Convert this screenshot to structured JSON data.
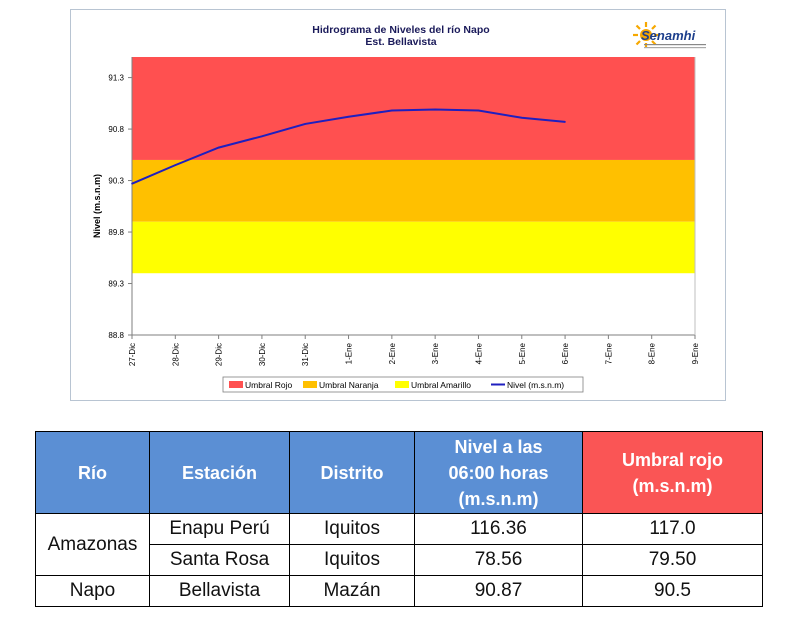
{
  "chart_data": {
    "type": "line",
    "title": "Hidrograma de Niveles del río Napo",
    "subtitle": "Est. Bellavista",
    "logo_text": "Senamhi",
    "ylabel": "Nivel (m.s.n.m)",
    "xlabel": "",
    "ylim": [
      88.8,
      91.5
    ],
    "y_ticks": [
      "88.8",
      "89.3",
      "89.8",
      "90.3",
      "90.8",
      "91.3"
    ],
    "x_ticks": [
      "27-Dic",
      "28-Dic",
      "29-Dic",
      "30-Dic",
      "31-Dic",
      "1-Ene",
      "2-Ene",
      "3-Ene",
      "4-Ene",
      "5-Ene",
      "6-Ene",
      "7-Ene",
      "8-Ene",
      "9-Ene"
    ],
    "bands": [
      {
        "name": "Umbral Rojo",
        "from": 90.5,
        "to": 91.5,
        "color": "#ff5050"
      },
      {
        "name": "Umbral Naranja",
        "from": 89.9,
        "to": 90.5,
        "color": "#ffc000"
      },
      {
        "name": "Umbral Amarillo",
        "from": 89.4,
        "to": 89.9,
        "color": "#ffff00"
      }
    ],
    "series": [
      {
        "name": "Nivel (m.s.n.m)",
        "color": "#1f1fbf",
        "x": [
          "27-Dic",
          "28-Dic",
          "29-Dic",
          "30-Dic",
          "31-Dic",
          "1-Ene",
          "2-Ene",
          "3-Ene",
          "4-Ene",
          "5-Ene",
          "6-Ene"
        ],
        "values": [
          90.27,
          90.45,
          90.62,
          90.73,
          90.85,
          90.92,
          90.98,
          90.99,
          90.98,
          90.91,
          90.87
        ]
      }
    ],
    "legend": [
      "Umbral Rojo",
      "Umbral Naranja",
      "Umbral Amarillo",
      "Nivel (m.s.n.m)"
    ],
    "legend_position": "bottom",
    "grid": false
  },
  "table": {
    "headers": [
      "Río",
      "Estación",
      "Distrito",
      "Nivel a las 06:00 horas (m.s.n.m)",
      "Umbral rojo (m.s.n.m)"
    ],
    "rows": [
      [
        "Amazonas",
        "Enapu Perú",
        "Iquitos",
        "116.36",
        "117.0"
      ],
      [
        "",
        "Santa Rosa",
        "Iquitos",
        "78.56",
        "79.50"
      ],
      [
        "Napo",
        "Bellavista",
        "Mazán",
        "90.87",
        "90.5"
      ]
    ]
  }
}
